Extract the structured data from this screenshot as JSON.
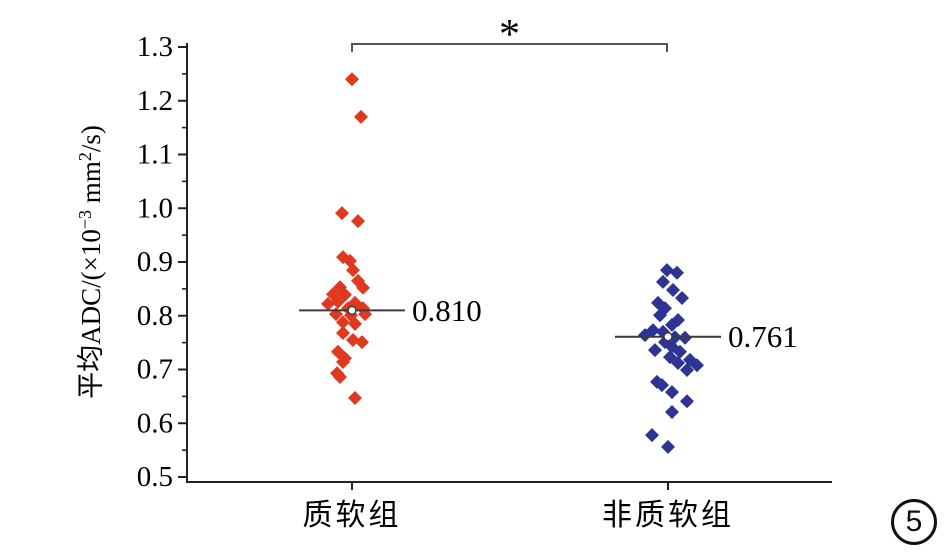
{
  "figure_number": "5",
  "chart_data": {
    "type": "scatter",
    "title": "",
    "xlabel": "",
    "ylabel": "平均ADC/(×10⁻³ mm²/s)",
    "ylabel_parts": [
      {
        "t": "平均ADC/(×10"
      },
      {
        "t": "−3",
        "sup": true
      },
      {
        "t": " mm"
      },
      {
        "t": "2",
        "sup": true
      },
      {
        "t": "/s)"
      }
    ],
    "ylim": [
      0.5,
      1.3
    ],
    "ytick_labels": [
      "1.3",
      "1.2",
      "1.1",
      "1.0",
      "0.9",
      "0.8",
      "0.7",
      "0.6",
      "0.5"
    ],
    "ytick_values": [
      1.3,
      1.2,
      1.1,
      1.0,
      0.9,
      0.8,
      0.7,
      0.6,
      0.5
    ],
    "yminor_values": [
      1.25,
      1.15,
      1.05,
      0.95,
      0.85,
      0.75,
      0.65,
      0.55
    ],
    "grid": false,
    "legend": null,
    "significance": {
      "symbol": "*",
      "between": [
        0,
        1
      ]
    },
    "groups": [
      {
        "label": "质软组",
        "marker": "diamond",
        "color": "#DF3A20",
        "mean": 0.81,
        "mean_label": "0.810",
        "points": [
          [
            0,
            1.24
          ],
          [
            9,
            1.17
          ],
          [
            -10,
            0.991
          ],
          [
            6,
            0.976
          ],
          [
            -9,
            0.909
          ],
          [
            -2,
            0.902
          ],
          [
            1,
            0.885
          ],
          [
            6,
            0.865
          ],
          [
            -12,
            0.853
          ],
          [
            11,
            0.852
          ],
          [
            -19,
            0.84
          ],
          [
            -7,
            0.839
          ],
          [
            -14,
            0.826
          ],
          [
            3,
            0.824
          ],
          [
            -24,
            0.822
          ],
          [
            -4,
            0.814
          ],
          [
            11,
            0.814
          ],
          [
            -16,
            0.803
          ],
          [
            -1,
            0.801
          ],
          [
            13,
            0.803
          ],
          [
            -9,
            0.788
          ],
          [
            3,
            0.785
          ],
          [
            -9,
            0.768
          ],
          [
            1,
            0.755
          ],
          [
            10,
            0.751
          ],
          [
            -14,
            0.733
          ],
          [
            -7,
            0.721
          ],
          [
            -9,
            0.714
          ],
          [
            -15,
            0.693
          ],
          [
            -12,
            0.686
          ],
          [
            3,
            0.647
          ]
        ]
      },
      {
        "label": "非质软组",
        "marker": "diamond",
        "color": "#2D3494",
        "mean": 0.761,
        "mean_label": "0.761",
        "points": [
          [
            -1,
            0.885
          ],
          [
            9,
            0.88
          ],
          [
            -5,
            0.863
          ],
          [
            5,
            0.848
          ],
          [
            14,
            0.833
          ],
          [
            -10,
            0.824
          ],
          [
            -3,
            0.814
          ],
          [
            -8,
            0.801
          ],
          [
            10,
            0.792
          ],
          [
            4,
            0.783
          ],
          [
            -15,
            0.773
          ],
          [
            -5,
            0.77
          ],
          [
            -23,
            0.764
          ],
          [
            7,
            0.76
          ],
          [
            17,
            0.759
          ],
          [
            -3,
            0.751
          ],
          [
            4,
            0.742
          ],
          [
            -13,
            0.736
          ],
          [
            12,
            0.733
          ],
          [
            2,
            0.723
          ],
          [
            22,
            0.718
          ],
          [
            10,
            0.712
          ],
          [
            29,
            0.708
          ],
          [
            19,
            0.699
          ],
          [
            -11,
            0.677
          ],
          [
            -6,
            0.671
          ],
          [
            4,
            0.658
          ],
          [
            19,
            0.641
          ],
          [
            4,
            0.621
          ],
          [
            -16,
            0.578
          ],
          [
            0,
            0.556
          ]
        ]
      }
    ]
  },
  "colors": {
    "axis": "#222222",
    "mean_line": "#3c3c3c",
    "bracket": "#555555",
    "text": "#000000",
    "background": "#ffffff",
    "mean_marker_fill": "#ffffff"
  }
}
